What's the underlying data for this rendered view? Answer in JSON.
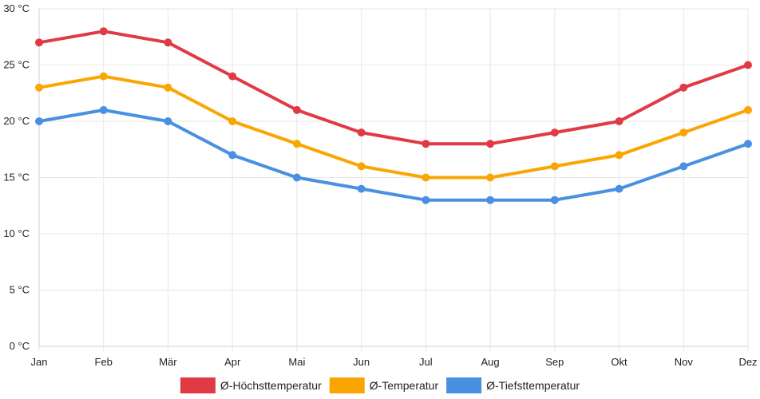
{
  "chart_data": {
    "type": "line",
    "title": "",
    "xlabel": "",
    "ylabel": "",
    "categories": [
      "Jan",
      "Feb",
      "Mär",
      "Apr",
      "Mai",
      "Jun",
      "Jul",
      "Aug",
      "Sep",
      "Okt",
      "Nov",
      "Dez"
    ],
    "y_ticks": [
      0,
      5,
      10,
      15,
      20,
      25,
      30
    ],
    "y_tick_labels": [
      "0 °C",
      "5 °C",
      "10 °C",
      "15 °C",
      "20 °C",
      "25 °C",
      "30 °C"
    ],
    "ylim": [
      0,
      30
    ],
    "grid": true,
    "legend_position": "bottom-center",
    "series": [
      {
        "name": "Ø-Höchsttemperatur",
        "color": "#e03a45",
        "values": [
          27,
          28,
          27,
          24,
          21,
          19,
          18,
          18,
          19,
          20,
          23,
          25
        ]
      },
      {
        "name": "Ø-Temperatur",
        "color": "#f9a602",
        "values": [
          23,
          24,
          23,
          20,
          18,
          16,
          15,
          15,
          16,
          17,
          19,
          21
        ]
      },
      {
        "name": "Ø-Tiefsttemperatur",
        "color": "#4a90e2",
        "values": [
          20,
          21,
          20,
          17,
          15,
          14,
          13,
          13,
          13,
          14,
          16,
          18
        ]
      }
    ]
  }
}
